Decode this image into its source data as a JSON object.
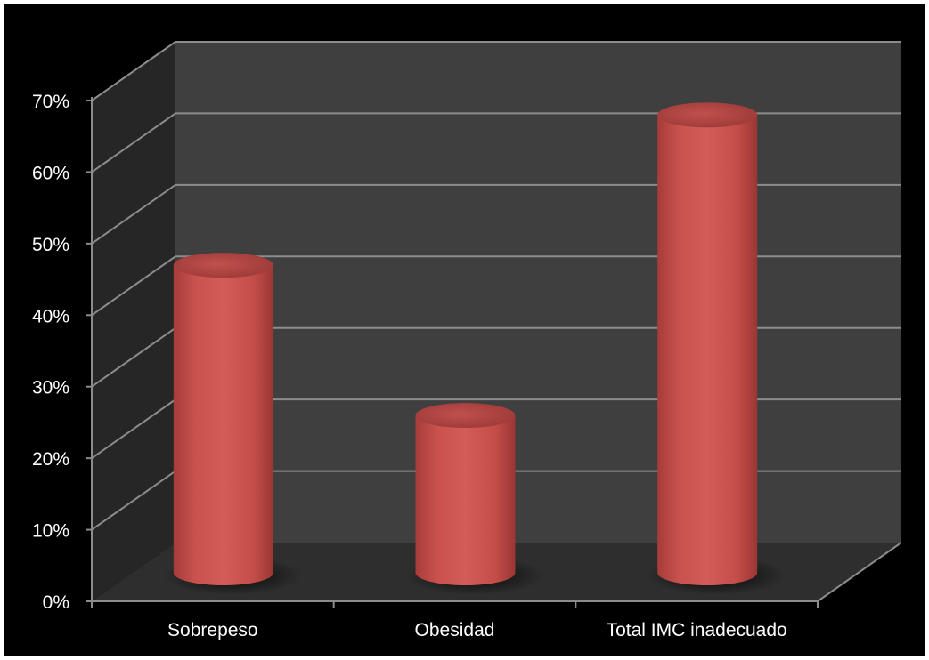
{
  "chart_data": {
    "type": "bar",
    "style": "3d-cylinder",
    "categories": [
      "Sobrepeso",
      "Obesidad",
      "Total IMC inadecuado"
    ],
    "values": [
      43,
      22,
      64
    ],
    "ylim": [
      0,
      70
    ],
    "yticks": [
      "0%",
      "10%",
      "20%",
      "30%",
      "40%",
      "50%",
      "60%",
      "70%"
    ],
    "title": "",
    "xlabel": "",
    "ylabel": "",
    "grid": true,
    "legend": "none",
    "colors": {
      "bar": "#c0504d",
      "background": "#000000",
      "back_wall": "#3f3f3f",
      "side_wall": "#262626",
      "floor": "#2e2e2e",
      "gridline": "#8c8c8c",
      "text": "#ffffff"
    }
  }
}
